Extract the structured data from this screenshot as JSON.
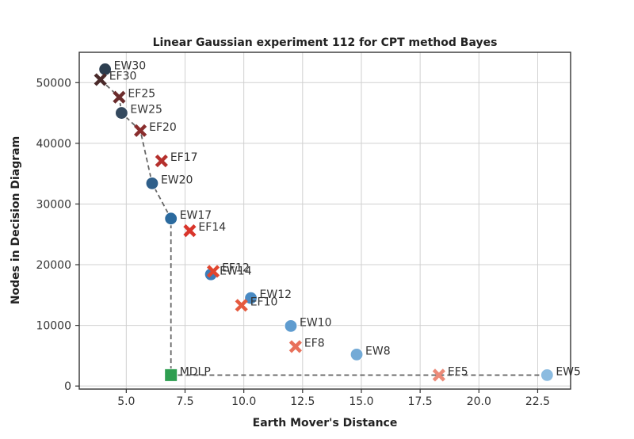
{
  "chart_data": {
    "type": "scatter",
    "title": "Linear Gaussian experiment 112 for CPT method Bayes",
    "xlabel": "Earth Mover's Distance",
    "ylabel": "Nodes in Decision Diagram",
    "xlim": [
      3.0,
      23.9
    ],
    "ylim": [
      -500,
      55000
    ],
    "xticks": [
      5.0,
      7.5,
      10.0,
      12.5,
      15.0,
      17.5,
      20.0,
      22.5
    ],
    "xtick_labels": [
      "5.0",
      "7.5",
      "10.0",
      "12.5",
      "15.0",
      "17.5",
      "20.0",
      "22.5"
    ],
    "yticks": [
      0,
      10000,
      20000,
      30000,
      40000,
      50000
    ],
    "ytick_labels": [
      "0",
      "10000",
      "20000",
      "30000",
      "40000",
      "50000"
    ],
    "grid": true,
    "colors": {
      "frontier_line": "#666666",
      "mdlp": "#2e9e50"
    },
    "frontier": [
      {
        "x": 3.9,
        "y": 50500
      },
      {
        "x": 4.7,
        "y": 47600
      },
      {
        "x": 4.8,
        "y": 45000
      },
      {
        "x": 5.6,
        "y": 42100
      },
      {
        "x": 6.1,
        "y": 33400
      },
      {
        "x": 6.9,
        "y": 27600
      },
      {
        "x": 6.9,
        "y": 1800
      },
      {
        "x": 18.3,
        "y": 1800
      },
      {
        "x": 22.9,
        "y": 1800
      }
    ],
    "points": [
      {
        "label": "EW30",
        "x": 4.1,
        "y": 52200,
        "marker": "circle",
        "color": "#2c3e50"
      },
      {
        "label": "EW25",
        "x": 4.8,
        "y": 45000,
        "marker": "circle",
        "color": "#34495e"
      },
      {
        "label": "EW20",
        "x": 6.1,
        "y": 33400,
        "marker": "circle",
        "color": "#2f5f8a"
      },
      {
        "label": "EW17",
        "x": 6.9,
        "y": 27600,
        "marker": "circle",
        "color": "#2b6a9e"
      },
      {
        "label": "EW14",
        "x": 8.6,
        "y": 18400,
        "marker": "circle",
        "color": "#3c7cb8"
      },
      {
        "label": "EW12",
        "x": 10.3,
        "y": 14500,
        "marker": "circle",
        "color": "#4a8bc4"
      },
      {
        "label": "EW10",
        "x": 12.0,
        "y": 9900,
        "marker": "circle",
        "color": "#5f9ccf"
      },
      {
        "label": "EW8",
        "x": 14.8,
        "y": 5200,
        "marker": "circle",
        "color": "#73aad6"
      },
      {
        "label": "EW5",
        "x": 22.9,
        "y": 1800,
        "marker": "circle",
        "color": "#8bbbe0"
      },
      {
        "label": "EF30",
        "x": 3.9,
        "y": 50500,
        "marker": "x",
        "color": "#4a2a2a"
      },
      {
        "label": "EF25",
        "x": 4.7,
        "y": 47600,
        "marker": "x",
        "color": "#6b2c2c"
      },
      {
        "label": "EF20",
        "x": 5.6,
        "y": 42100,
        "marker": "x",
        "color": "#8a2e2e"
      },
      {
        "label": "EF17",
        "x": 6.5,
        "y": 37100,
        "marker": "x",
        "color": "#b5302d"
      },
      {
        "label": "EF14",
        "x": 7.7,
        "y": 25600,
        "marker": "x",
        "color": "#d9352b"
      },
      {
        "label": "EF12",
        "x": 8.7,
        "y": 18900,
        "marker": "x",
        "color": "#e1462f"
      },
      {
        "label": "EF10",
        "x": 9.9,
        "y": 13300,
        "marker": "x",
        "color": "#e55a3f"
      },
      {
        "label": "EF8",
        "x": 12.2,
        "y": 6500,
        "marker": "x",
        "color": "#e8705a"
      },
      {
        "label": "EF5",
        "x": 18.3,
        "y": 1800,
        "marker": "x",
        "color": "#ec8a78"
      },
      {
        "label": "MDLP",
        "x": 6.9,
        "y": 1800,
        "marker": "square",
        "color": "#2e9e50"
      }
    ]
  }
}
